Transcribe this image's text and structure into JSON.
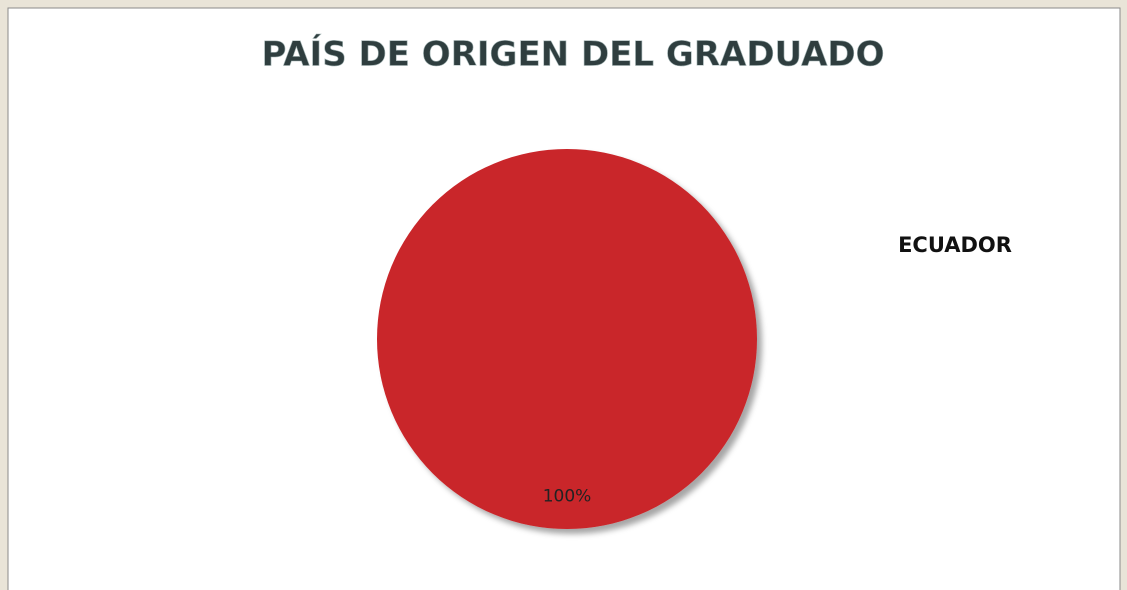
{
  "chart_data": {
    "type": "pie",
    "title": "PAÍS DE ORIGEN DEL GRADUADO",
    "categories": [
      "ECUADOR"
    ],
    "values": [
      100
    ],
    "value_labels": [
      "100%"
    ],
    "colors": [
      "#c9252a"
    ],
    "legend": "right"
  }
}
